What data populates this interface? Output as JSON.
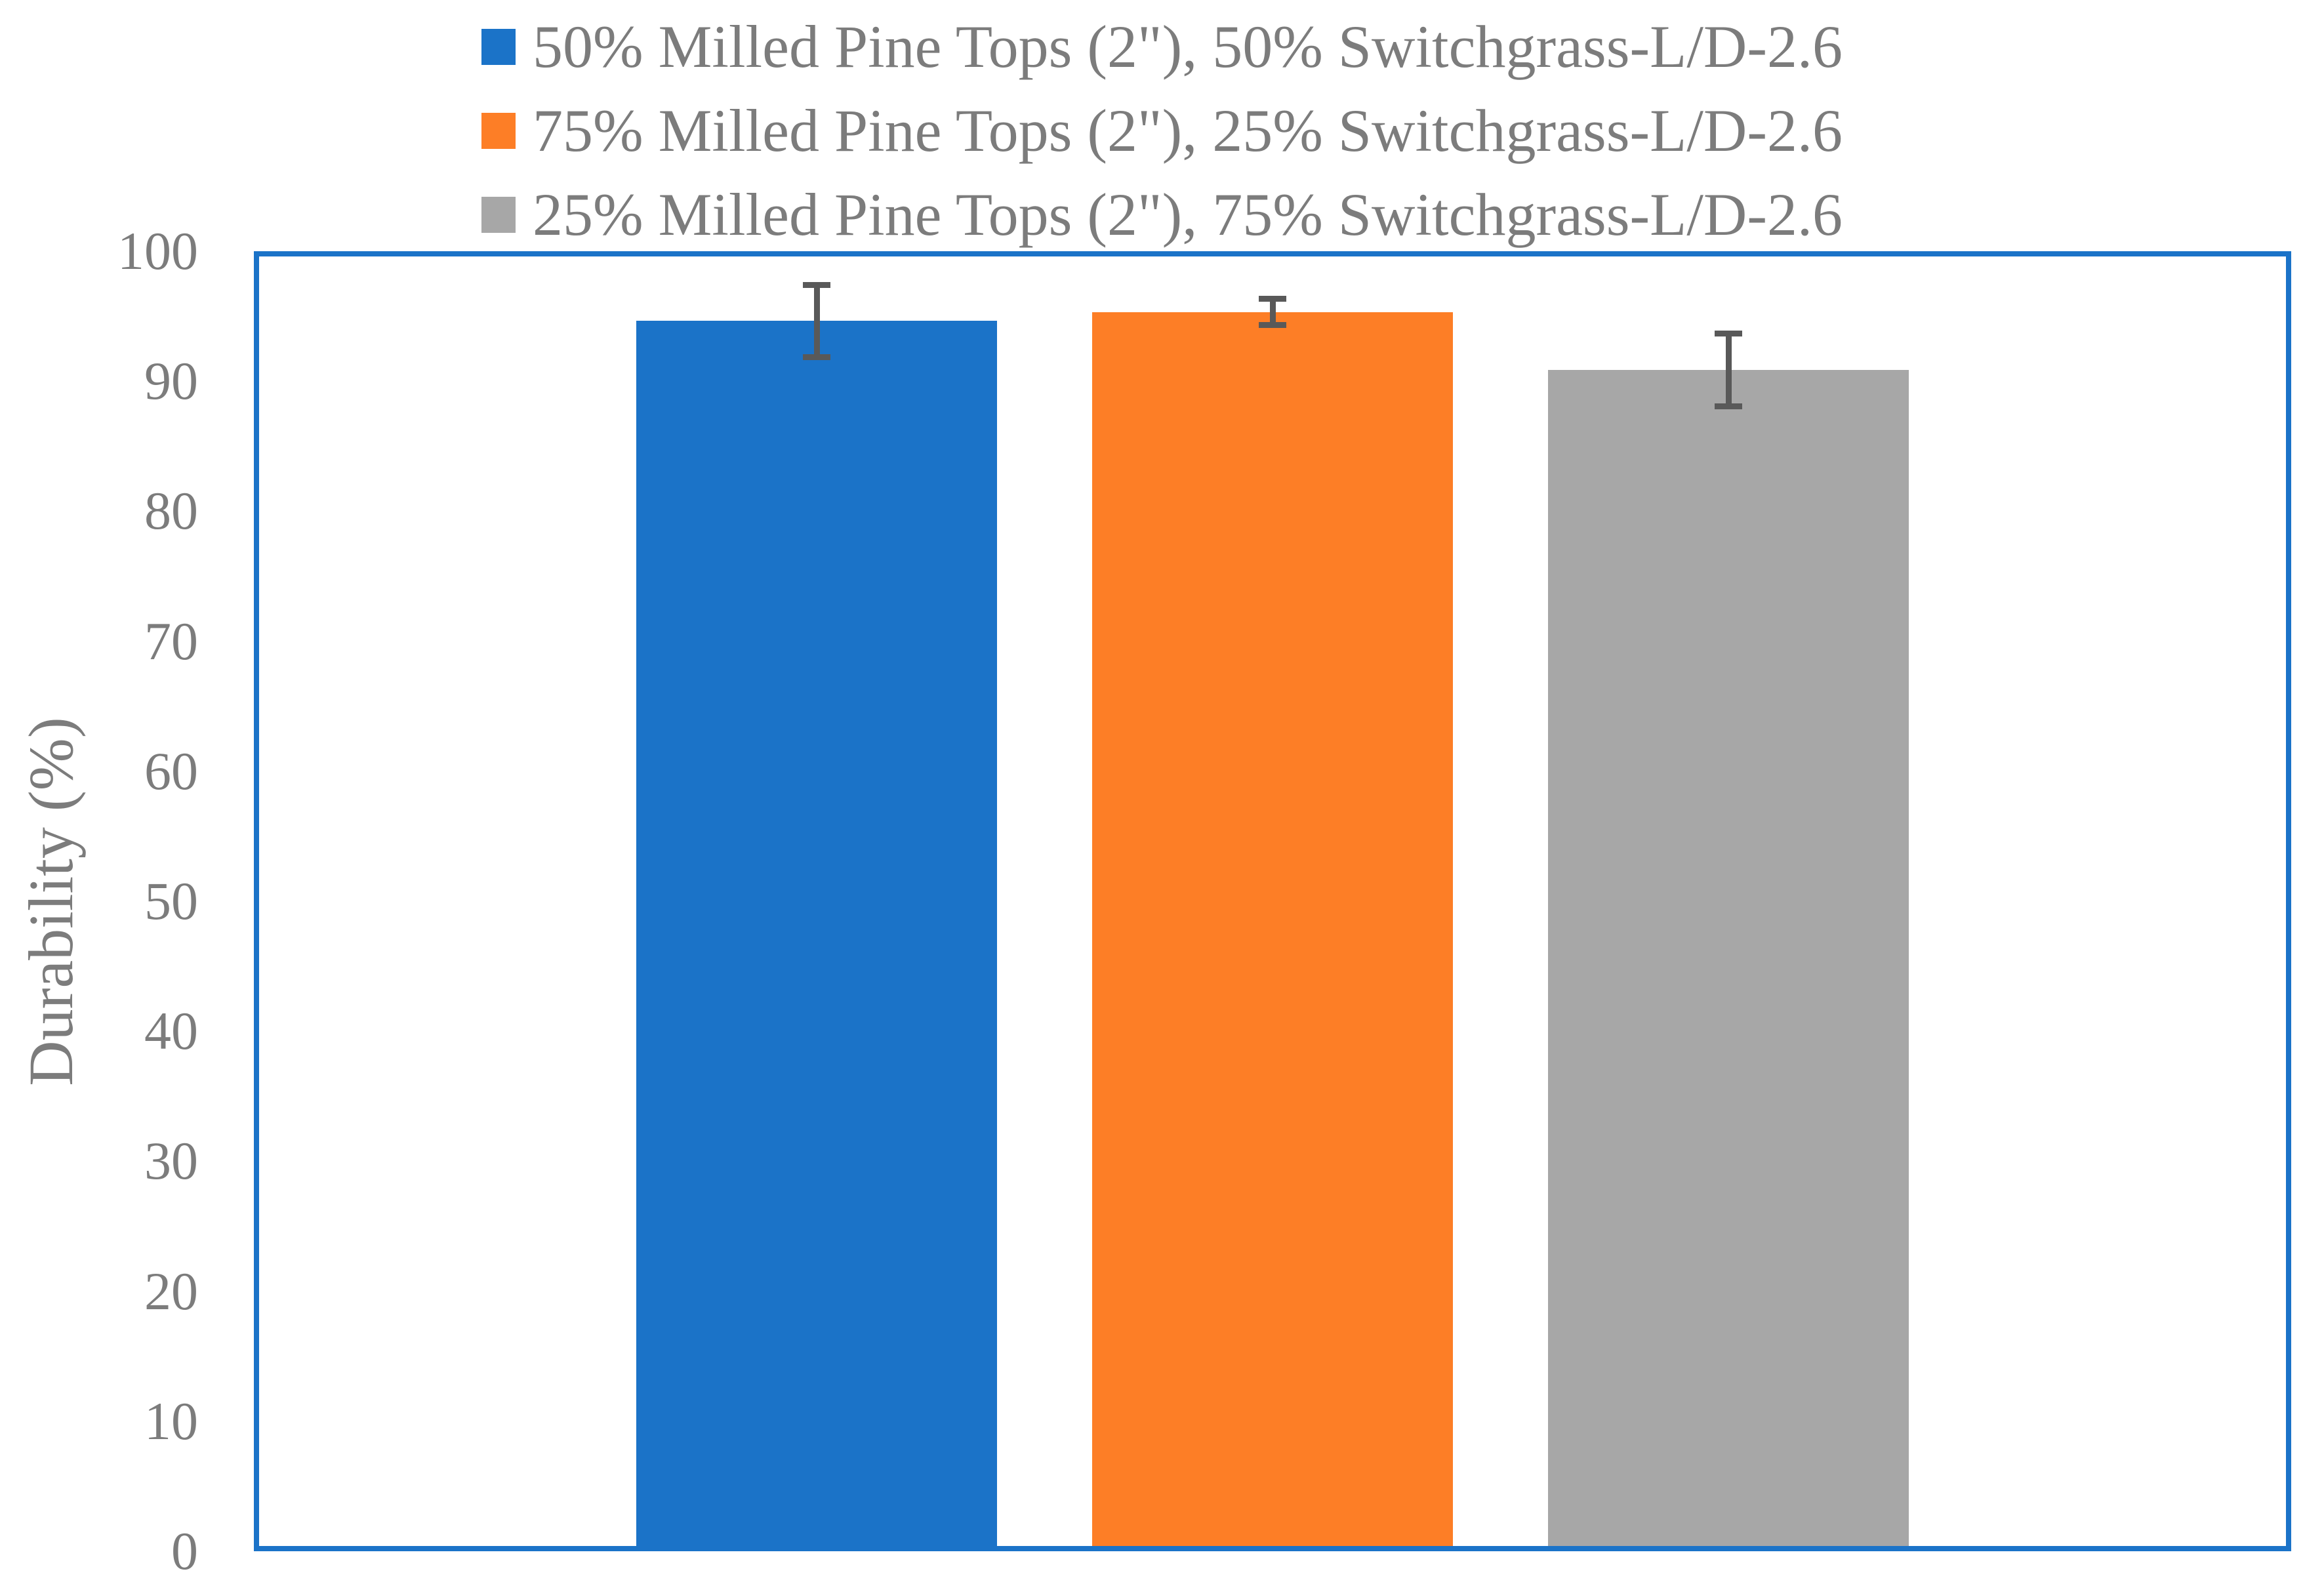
{
  "chart_data": {
    "type": "bar",
    "title": "",
    "xlabel": "",
    "ylabel": "Durability (%)",
    "ylim": [
      0,
      100
    ],
    "yticks": [
      0,
      10,
      20,
      30,
      40,
      50,
      60,
      70,
      80,
      90,
      100
    ],
    "grid": false,
    "legend_position": "top-center",
    "categories": [
      ""
    ],
    "series": [
      {
        "name": "50% Milled Pine Tops (2\"), 50% Switchgrass-L/D-2.6",
        "values": [
          95.0
        ],
        "error": [
          2.8
        ],
        "color": "#1b73c8"
      },
      {
        "name": "75% Milled Pine Tops (2\"), 25% Switchgrass-L/D-2.6",
        "values": [
          95.7
        ],
        "error": [
          1.0
        ],
        "color": "#fd7e26"
      },
      {
        "name": "25% Milled Pine Tops (2\"), 75% Switchgrass-L/D-2.6",
        "values": [
          91.2
        ],
        "error": [
          2.8
        ],
        "color": "#a7a7a7"
      }
    ],
    "colors": {
      "plot_border": "#1b73c8",
      "error_bar": "#595959",
      "text": "#7c7c7c",
      "background": "#ffffff"
    }
  }
}
